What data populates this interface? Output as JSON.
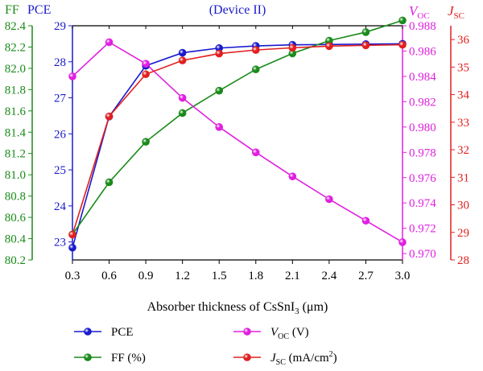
{
  "chart_data": {
    "type": "line",
    "title": "(Device II)",
    "xlabel": "Absorber thickness of CsSnI",
    "xlabel_sub": "3",
    "xlabel_unit": " (μm)",
    "xlim": [
      0.3,
      3.0
    ],
    "x": [
      0.3,
      0.6,
      0.9,
      1.2,
      1.5,
      1.8,
      2.1,
      2.4,
      2.7,
      3.0
    ],
    "x_ticks": [
      "0.3",
      "0.6",
      "0.9",
      "1.2",
      "1.5",
      "1.8",
      "2.1",
      "2.4",
      "2.7",
      "3.0"
    ],
    "axes": {
      "ff": {
        "label": "FF",
        "color": "#1a8a1a",
        "lim": [
          80.2,
          82.4
        ],
        "ticks": [
          "80.2",
          "80.4",
          "80.6",
          "80.8",
          "81.0",
          "81.2",
          "81.4",
          "81.6",
          "81.8",
          "82.0",
          "82.2",
          "82.4"
        ]
      },
      "pce": {
        "label": "PCE",
        "color": "#1a1acc",
        "lim": [
          22.5,
          29.0
        ],
        "ticks": [
          "23",
          "24",
          "25",
          "26",
          "27",
          "28",
          "29"
        ]
      },
      "voc": {
        "label": "V",
        "label_sub": "OC",
        "color": "#e020e0",
        "lim": [
          0.9695,
          0.988
        ],
        "ticks": [
          "0.970",
          "0.972",
          "0.974",
          "0.976",
          "0.978",
          "0.980",
          "0.982",
          "0.984",
          "0.986",
          "0.988"
        ]
      },
      "jsc": {
        "label": "J",
        "label_sub": "SC",
        "color": "#e02020",
        "lim": [
          28,
          36.5
        ],
        "ticks": [
          "28",
          "29",
          "30",
          "31",
          "32",
          "33",
          "34",
          "35",
          "36"
        ]
      }
    },
    "series": [
      {
        "key": "pce",
        "color": "#1a1acc",
        "values": [
          22.84,
          26.48,
          27.89,
          28.25,
          28.38,
          28.44,
          28.47,
          28.48,
          28.49,
          28.5
        ]
      },
      {
        "key": "ff",
        "color": "#1a8a1a",
        "values": [
          80.44,
          80.93,
          81.31,
          81.58,
          81.79,
          81.99,
          82.14,
          82.26,
          82.34,
          82.45
        ]
      },
      {
        "key": "voc",
        "color": "#e020e0",
        "values": [
          0.984,
          0.9867,
          0.985,
          0.9823,
          0.98,
          0.978,
          0.9761,
          0.9743,
          0.9726,
          0.9709
        ]
      },
      {
        "key": "jsc",
        "color": "#e02020",
        "values": [
          28.92,
          33.21,
          34.74,
          35.24,
          35.49,
          35.62,
          35.7,
          35.76,
          35.79,
          35.81
        ]
      }
    ],
    "legend": {
      "position": "bottom",
      "items": [
        {
          "key": "pce",
          "label": "PCE",
          "sub": "",
          "suffix": ""
        },
        {
          "key": "ff",
          "label": "FF (%)",
          "sub": "",
          "suffix": ""
        },
        {
          "key": "voc",
          "label": "V",
          "sub": "OC",
          "suffix": " (V)"
        },
        {
          "key": "jsc",
          "label": "J",
          "sub": "SC",
          "suffix": " (mA/cm",
          "sup": "2",
          "suffix2": ")"
        }
      ]
    }
  }
}
